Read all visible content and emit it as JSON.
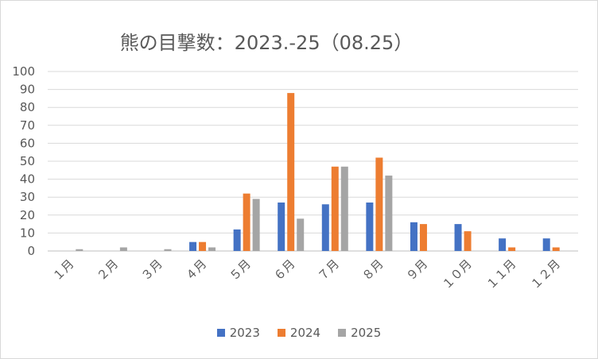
{
  "chart_data": {
    "type": "bar",
    "title": "熊の目撃数：2023.-25（08.25）",
    "xlabel": "",
    "ylabel": "",
    "ylim": [
      0,
      100
    ],
    "yticks": [
      "0",
      "10",
      "20",
      "30",
      "40",
      "50",
      "60",
      "70",
      "80",
      "90",
      "100"
    ],
    "grid": true,
    "legend_position": "bottom",
    "categories": [
      "１月",
      "２月",
      "３月",
      "４月",
      "５月",
      "６月",
      "７月",
      "８月",
      "９月",
      "１０月",
      "１１月",
      "１２月"
    ],
    "series": [
      {
        "name": "2023",
        "color": "#4472c4",
        "values": [
          0,
          0,
          0,
          5,
          12,
          27,
          26,
          27,
          16,
          15,
          7,
          7
        ]
      },
      {
        "name": "2024",
        "color": "#ed7d31",
        "values": [
          0,
          0,
          0,
          5,
          32,
          88,
          47,
          52,
          15,
          11,
          2,
          2
        ]
      },
      {
        "name": "2025",
        "color": "#a5a5a5",
        "values": [
          1,
          2,
          1,
          2,
          29,
          18,
          47,
          42,
          0,
          0,
          0,
          0
        ]
      }
    ]
  }
}
